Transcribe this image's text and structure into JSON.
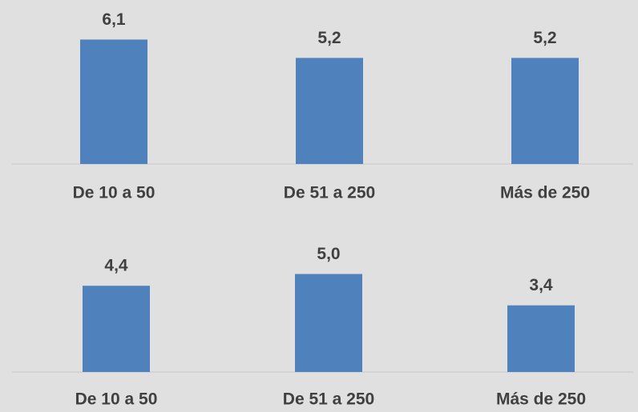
{
  "chart_data": [
    {
      "type": "bar",
      "categories": [
        "De 10 a 50",
        "De 51 a 250",
        "Más de 250"
      ],
      "values": [
        6.1,
        5.2,
        5.2
      ],
      "value_labels": [
        "6,1",
        "5,2",
        "5,2"
      ],
      "color": "#4f81bd"
    },
    {
      "type": "bar",
      "categories": [
        "De 10 a 50",
        "De 51 a 250",
        "Más de 250"
      ],
      "values": [
        4.4,
        5.0,
        3.4
      ],
      "value_labels": [
        "4,4",
        "5,0",
        "3,4"
      ],
      "color": "#4f81bd"
    }
  ]
}
